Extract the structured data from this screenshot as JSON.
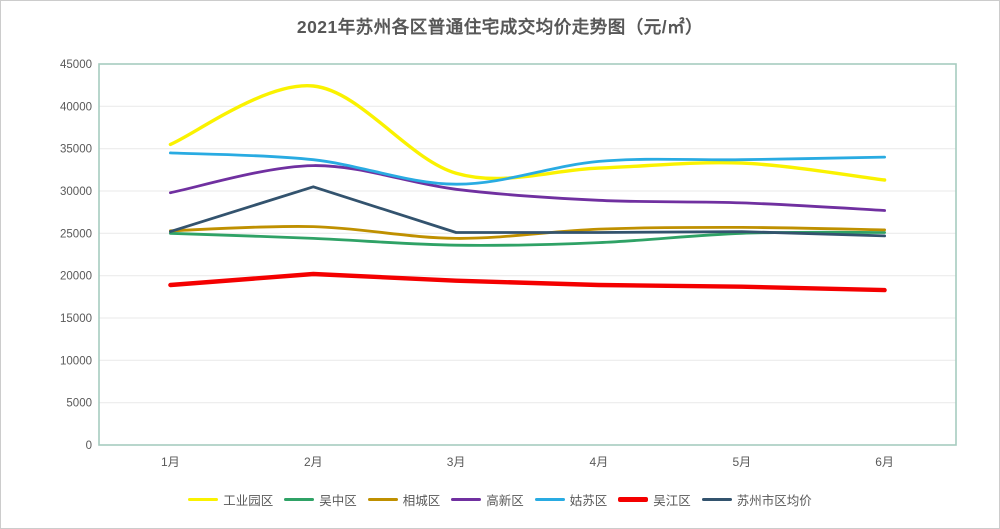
{
  "page": {
    "background": "#ffffff",
    "border_color": "#cccccc"
  },
  "chart_data": {
    "type": "line",
    "title": "2021年苏州各区普通住宅成交均价走势图（元/㎡）",
    "categories": [
      "1月",
      "2月",
      "3月",
      "4月",
      "5月",
      "6月"
    ],
    "series": [
      {
        "name": "工业园区",
        "color": "#faf200",
        "width": 3.4,
        "smooth": true,
        "values": [
          35500,
          42400,
          32100,
          32700,
          33300,
          31300
        ]
      },
      {
        "name": "吴中区",
        "color": "#2fa266",
        "width": 2.8,
        "smooth": true,
        "values": [
          25000,
          24400,
          23600,
          23900,
          25000,
          25100
        ]
      },
      {
        "name": "相城区",
        "color": "#bf9000",
        "width": 2.8,
        "smooth": true,
        "values": [
          25300,
          25800,
          24400,
          25500,
          25700,
          25400
        ]
      },
      {
        "name": "高新区",
        "color": "#7030a0",
        "width": 2.8,
        "smooth": true,
        "values": [
          29800,
          33000,
          30200,
          28900,
          28600,
          27700
        ]
      },
      {
        "name": "姑苏区",
        "color": "#29abe2",
        "width": 2.8,
        "smooth": true,
        "values": [
          34500,
          33700,
          30800,
          33500,
          33700,
          34000
        ]
      },
      {
        "name": "吴江区",
        "color": "#f40000",
        "width": 4.4,
        "smooth": false,
        "values": [
          18900,
          20200,
          19400,
          18900,
          18700,
          18300
        ]
      },
      {
        "name": "苏州市区均价",
        "color": "#33536e",
        "width": 2.8,
        "smooth": false,
        "values": [
          25200,
          30500,
          25100,
          25100,
          25200,
          24700
        ]
      }
    ],
    "xlabel": "",
    "ylabel": "",
    "ylim": [
      0,
      45000
    ],
    "y_ticks": [
      0,
      5000,
      10000,
      15000,
      20000,
      25000,
      30000,
      35000,
      40000,
      45000
    ],
    "grid": true,
    "legend_position": "bottom",
    "plot_border_color": "#a6ccc0",
    "gridline_color": "#e9e9e9",
    "text_color": "#595959"
  }
}
